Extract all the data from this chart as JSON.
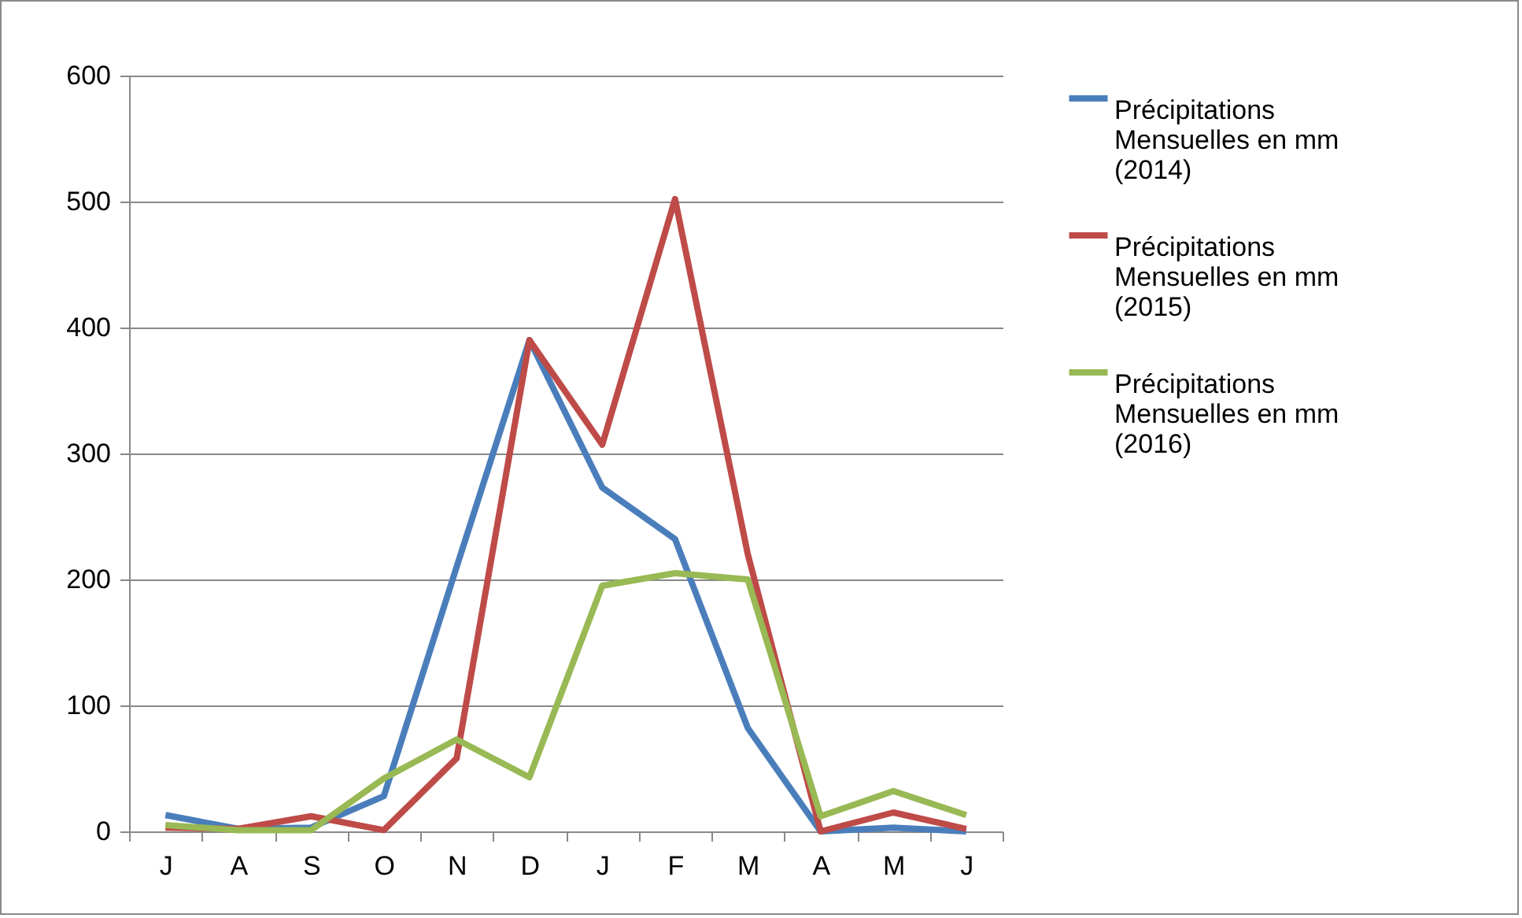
{
  "chart_data": {
    "type": "line",
    "categories": [
      "J",
      "A",
      "S",
      "O",
      "N",
      "D",
      "J",
      "F",
      "M",
      "A",
      "M",
      "J"
    ],
    "series": [
      {
        "name": "Précipitations Mensuelles en mm (2014)",
        "color": "#4a7ebb",
        "values": [
          13,
          2,
          3,
          28,
          210,
          390,
          273,
          232,
          82,
          0,
          3,
          0
        ]
      },
      {
        "name": "Précipitations Mensuelles en mm (2015)",
        "color": "#be4b48",
        "values": [
          3,
          2,
          12,
          1,
          58,
          390,
          307,
          502,
          220,
          0,
          15,
          2
        ]
      },
      {
        "name": "Précipitations Mensuelles en mm (2016)",
        "color": "#98b954",
        "values": [
          5,
          1,
          1,
          42,
          73,
          43,
          195,
          205,
          200,
          12,
          32,
          13
        ]
      }
    ],
    "ylim": [
      0,
      600
    ],
    "yticks": [
      0,
      100,
      200,
      300,
      400,
      500,
      600
    ],
    "grid": "y",
    "legend": "right",
    "marker": "none",
    "line_style": "solid"
  }
}
